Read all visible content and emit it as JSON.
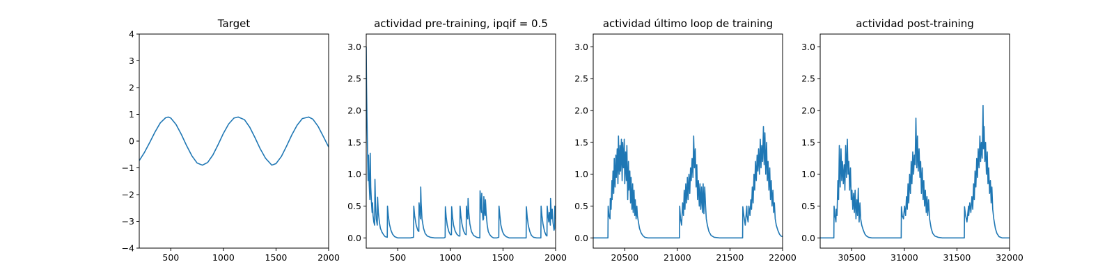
{
  "chart_data": [
    {
      "type": "line",
      "title": "Target",
      "xlim": [
        200,
        2000
      ],
      "ylim": [
        -4,
        4
      ],
      "xticks": [
        500,
        1000,
        1500,
        2000
      ],
      "yticks": [
        -4,
        -3,
        -2,
        -1,
        0,
        1,
        2,
        3,
        4
      ],
      "xtick_labels": [
        "500",
        "1000",
        "1500",
        "2000"
      ],
      "ytick_labels": [
        "−4",
        "−3",
        "−2",
        "−1",
        "0",
        "1",
        "2",
        "3",
        "4"
      ],
      "series_color": "#1f77b4",
      "series": [
        {
          "x": [
            200,
            250,
            300,
            350,
            400,
            450,
            475,
            500,
            550,
            600,
            650,
            700,
            750,
            800,
            850,
            900,
            950,
            1000,
            1050,
            1100,
            1140,
            1200,
            1250,
            1300,
            1350,
            1400,
            1460,
            1500,
            1550,
            1600,
            1650,
            1700,
            1750,
            1810,
            1850,
            1900,
            1950,
            2000
          ],
          "y": [
            -0.73,
            -0.42,
            -0.05,
            0.34,
            0.68,
            0.87,
            0.9,
            0.86,
            0.62,
            0.25,
            -0.17,
            -0.55,
            -0.82,
            -0.9,
            -0.8,
            -0.52,
            -0.13,
            0.29,
            0.64,
            0.86,
            0.9,
            0.8,
            0.52,
            0.13,
            -0.29,
            -0.64,
            -0.9,
            -0.84,
            -0.58,
            -0.19,
            0.23,
            0.59,
            0.84,
            0.9,
            0.82,
            0.55,
            0.17,
            -0.22
          ]
        }
      ]
    },
    {
      "type": "line",
      "title": "actividad pre-training, ipqif = 0.5",
      "xlim": [
        200,
        2000
      ],
      "ylim": [
        -0.16,
        3.2
      ],
      "xticks": [
        500,
        1000,
        1500,
        2000
      ],
      "yticks": [
        0.0,
        0.5,
        1.0,
        1.5,
        2.0,
        2.5,
        3.0
      ],
      "xtick_labels": [
        "500",
        "1000",
        "1500",
        "2000"
      ],
      "ytick_labels": [
        "0.0",
        "0.5",
        "1.0",
        "1.5",
        "2.0",
        "2.5",
        "3.0"
      ],
      "series_color": "#1f77b4",
      "series": [
        {
          "x": [
            200,
            203,
            207,
            212,
            218,
            222,
            228,
            235,
            238,
            243,
            250,
            256,
            260,
            265,
            272,
            280,
            283,
            288,
            295,
            305,
            308,
            315,
            325,
            335,
            350,
            365,
            380,
            400,
            402,
            410,
            420,
            435,
            450,
            470,
            500,
            540,
            580,
            620,
            650,
            652,
            660,
            675,
            690,
            700,
            702,
            710,
            715,
            718,
            722,
            730,
            745,
            760,
            780,
            810,
            850,
            900,
            940,
            950,
            952,
            960,
            970,
            985,
            1000,
            1010,
            1012,
            1020,
            1030,
            1045,
            1060,
            1080,
            1090,
            1092,
            1100,
            1110,
            1125,
            1140,
            1150,
            1152,
            1160,
            1165,
            1168,
            1175,
            1185,
            1200,
            1220,
            1250,
            1280,
            1282,
            1290,
            1295,
            1298,
            1302,
            1310,
            1315,
            1318,
            1325,
            1330,
            1333,
            1340,
            1350,
            1360,
            1375,
            1390,
            1410,
            1440,
            1460,
            1462,
            1470,
            1480,
            1495,
            1510,
            1530,
            1560,
            1600,
            1650,
            1700,
            1720,
            1722,
            1730,
            1740,
            1755,
            1770,
            1790,
            1820,
            1850,
            1860,
            1862,
            1870,
            1880,
            1895,
            1910,
            1918,
            1920,
            1928,
            1935,
            1940,
            1950,
            1952,
            1958,
            1962,
            1968,
            1975,
            1985,
            1990,
            1992,
            2000
          ],
          "y": [
            3.0,
            2.4,
            1.9,
            1.4,
            0.9,
            1.3,
            0.85,
            0.6,
            1.33,
            0.8,
            0.55,
            0.4,
            0.55,
            0.35,
            0.25,
            0.2,
            0.92,
            0.55,
            0.3,
            0.2,
            0.64,
            0.4,
            0.25,
            0.15,
            0.09,
            0.05,
            0.02,
            0.01,
            0.5,
            0.35,
            0.22,
            0.12,
            0.06,
            0.02,
            0.0,
            0.0,
            0.0,
            0.0,
            0.01,
            0.5,
            0.35,
            0.2,
            0.12,
            0.1,
            0.55,
            0.4,
            0.3,
            0.8,
            0.55,
            0.3,
            0.15,
            0.07,
            0.03,
            0.01,
            0.0,
            0.0,
            0.0,
            0.01,
            0.49,
            0.33,
            0.2,
            0.1,
            0.05,
            0.05,
            0.49,
            0.33,
            0.2,
            0.11,
            0.06,
            0.03,
            0.03,
            0.5,
            0.34,
            0.22,
            0.11,
            0.06,
            0.05,
            0.5,
            0.35,
            0.3,
            0.62,
            0.4,
            0.22,
            0.1,
            0.04,
            0.01,
            0.0,
            0.74,
            0.5,
            0.4,
            0.7,
            0.45,
            0.28,
            0.3,
            0.65,
            0.4,
            0.35,
            0.6,
            0.38,
            0.2,
            0.1,
            0.05,
            0.02,
            0.0,
            0.0,
            0.01,
            0.5,
            0.35,
            0.2,
            0.1,
            0.05,
            0.02,
            0.0,
            0.0,
            0.0,
            0.0,
            0.0,
            0.49,
            0.33,
            0.2,
            0.1,
            0.04,
            0.01,
            0.0,
            0.0,
            0.0,
            0.5,
            0.35,
            0.22,
            0.1,
            0.04,
            0.03,
            0.5,
            0.35,
            0.25,
            0.4,
            0.2,
            0.62,
            0.42,
            0.3,
            0.45,
            0.25,
            0.12,
            0.15,
            0.5,
            0.3
          ]
        }
      ]
    },
    {
      "type": "line",
      "title": "actividad último loop de training",
      "xlim": [
        20200,
        22000
      ],
      "ylim": [
        -0.16,
        3.2
      ],
      "xticks": [
        20500,
        21000,
        21500,
        22000
      ],
      "yticks": [
        0.0,
        0.5,
        1.0,
        1.5,
        2.0,
        2.5,
        3.0
      ],
      "xtick_labels": [
        "20500",
        "21000",
        "21500",
        "22000"
      ],
      "ytick_labels": [
        "0.0",
        "0.5",
        "1.0",
        "1.5",
        "2.0",
        "2.5",
        "3.0"
      ],
      "series_color": "#1f77b4",
      "series": [
        {
          "x": [
            20200,
            20340,
            20342,
            20350,
            20360,
            20362,
            20370,
            20378,
            20380,
            20388,
            20395,
            20400,
            20408,
            20415,
            20420,
            20428,
            20435,
            20440,
            20448,
            20455,
            20460,
            20468,
            20475,
            20480,
            20488,
            20495,
            20500,
            20508,
            20515,
            20520,
            20528,
            20535,
            20540,
            20548,
            20555,
            20560,
            20568,
            20575,
            20580,
            20588,
            20595,
            20600,
            20608,
            20615,
            20620,
            20630,
            20640,
            20655,
            20670,
            20690,
            20720,
            20760,
            20800,
            21020,
            21022,
            21030,
            21040,
            21050,
            21058,
            21065,
            21072,
            21080,
            21088,
            21095,
            21102,
            21110,
            21118,
            21125,
            21132,
            21140,
            21148,
            21155,
            21162,
            21170,
            21178,
            21185,
            21192,
            21200,
            21208,
            21215,
            21222,
            21230,
            21238,
            21245,
            21252,
            21260,
            21268,
            21275,
            21285,
            21300,
            21320,
            21350,
            21400,
            21620,
            21622,
            21632,
            21645,
            21660,
            21662,
            21672,
            21680,
            21690,
            21698,
            21705,
            21712,
            21720,
            21728,
            21735,
            21742,
            21750,
            21758,
            21765,
            21772,
            21780,
            21788,
            21795,
            21802,
            21810,
            21818,
            21825,
            21832,
            21840,
            21848,
            21855,
            21862,
            21870,
            21878,
            21885,
            21892,
            21900,
            21908,
            21915,
            21922,
            21930,
            21940,
            21955,
            21970,
            21985,
            22000
          ],
          "y": [
            0.0,
            0.0,
            0.5,
            0.35,
            0.3,
            0.62,
            0.45,
            0.9,
            0.6,
            1.05,
            0.7,
            1.25,
            0.8,
            1.3,
            0.95,
            1.4,
            0.85,
            1.6,
            1.0,
            1.45,
            1.05,
            1.55,
            0.9,
            1.5,
            1.1,
            1.55,
            0.85,
            1.35,
            0.9,
            1.45,
            0.6,
            1.2,
            0.75,
            1.05,
            0.55,
            0.95,
            0.45,
            0.85,
            0.4,
            0.75,
            0.35,
            0.6,
            0.3,
            0.5,
            0.35,
            0.25,
            0.15,
            0.08,
            0.04,
            0.01,
            0.0,
            0.0,
            0.0,
            0.0,
            0.5,
            0.3,
            0.2,
            0.55,
            0.35,
            0.75,
            0.45,
            0.85,
            0.55,
            0.95,
            0.6,
            1.0,
            0.7,
            1.1,
            0.9,
            1.25,
            0.95,
            1.6,
            1.1,
            1.4,
            0.8,
            1.15,
            0.6,
            0.9,
            0.5,
            0.85,
            0.45,
            0.8,
            0.4,
            0.85,
            0.38,
            0.8,
            0.5,
            0.3,
            0.2,
            0.1,
            0.04,
            0.01,
            0.0,
            0.0,
            0.49,
            0.35,
            0.2,
            0.5,
            0.35,
            0.25,
            0.5,
            0.35,
            0.6,
            0.45,
            0.8,
            0.55,
            1.0,
            0.75,
            1.2,
            0.9,
            1.3,
            1.05,
            1.4,
            1.0,
            1.55,
            1.1,
            1.45,
            1.2,
            1.75,
            1.15,
            1.65,
            1.0,
            1.5,
            0.9,
            1.2,
            0.75,
            1.1,
            0.6,
            0.9,
            0.5,
            0.75,
            0.4,
            0.55,
            0.3,
            0.2,
            0.12,
            0.06,
            0.03,
            0.02
          ]
        }
      ]
    },
    {
      "type": "line",
      "title": "actividad post-training",
      "xlim": [
        30200,
        32000
      ],
      "ylim": [
        -0.16,
        3.2
      ],
      "xticks": [
        30500,
        31000,
        31500,
        32000
      ],
      "yticks": [
        0.0,
        0.5,
        1.0,
        1.5,
        2.0,
        2.5,
        3.0
      ],
      "xtick_labels": [
        "30500",
        "31000",
        "31500",
        "32000"
      ],
      "ytick_labels": [
        "0.0",
        "0.5",
        "1.0",
        "1.5",
        "2.0",
        "2.5",
        "3.0"
      ],
      "series_color": "#1f77b4",
      "series": [
        {
          "x": [
            30200,
            30330,
            30332,
            30340,
            30350,
            30352,
            30360,
            30368,
            30375,
            30382,
            30390,
            30398,
            30405,
            30412,
            30420,
            30428,
            30435,
            30442,
            30450,
            30458,
            30465,
            30472,
            30480,
            30488,
            30495,
            30502,
            30510,
            30518,
            30525,
            30532,
            30540,
            30548,
            30555,
            30562,
            30570,
            30578,
            30585,
            30595,
            30610,
            30625,
            30640,
            30660,
            30690,
            30730,
            30770,
            30970,
            30972,
            30980,
            30992,
            31002,
            31012,
            31020,
            31028,
            31035,
            31042,
            31050,
            31058,
            31065,
            31072,
            31080,
            31088,
            31095,
            31102,
            31110,
            31118,
            31125,
            31132,
            31140,
            31148,
            31155,
            31162,
            31170,
            31178,
            31185,
            31192,
            31200,
            31208,
            31215,
            31222,
            31230,
            31240,
            31255,
            31270,
            31290,
            31320,
            31360,
            31400,
            31570,
            31572,
            31582,
            31595,
            31610,
            31612,
            31622,
            31632,
            31642,
            31650,
            31658,
            31665,
            31672,
            31680,
            31688,
            31695,
            31702,
            31710,
            31718,
            31725,
            31732,
            31740,
            31748,
            31752,
            31758,
            31765,
            31772,
            31780,
            31788,
            31795,
            31802,
            31810,
            31818,
            31825,
            31832,
            31840,
            31850,
            31865,
            31880,
            31900,
            31930,
            31960,
            32000
          ],
          "y": [
            0.0,
            0.0,
            0.5,
            0.35,
            0.25,
            0.45,
            0.35,
            0.9,
            0.6,
            1.45,
            0.8,
            1.4,
            0.9,
            1.2,
            0.85,
            1.15,
            0.75,
            1.45,
            0.95,
            1.55,
            1.0,
            1.2,
            0.75,
            1.1,
            0.6,
            0.75,
            0.45,
            0.7,
            0.4,
            0.75,
            0.3,
            0.6,
            0.35,
            0.78,
            0.25,
            0.55,
            0.3,
            0.2,
            0.12,
            0.06,
            0.03,
            0.01,
            0.0,
            0.0,
            0.0,
            0.0,
            0.49,
            0.35,
            0.3,
            0.5,
            0.35,
            0.65,
            0.45,
            0.85,
            0.55,
            1.0,
            0.7,
            1.2,
            0.85,
            1.35,
            1.0,
            1.3,
            1.15,
            1.88,
            1.1,
            1.6,
            1.05,
            1.4,
            0.95,
            1.2,
            0.7,
            1.1,
            0.6,
            0.9,
            0.5,
            0.75,
            0.4,
            0.65,
            0.35,
            0.6,
            0.3,
            0.15,
            0.07,
            0.03,
            0.01,
            0.0,
            0.0,
            0.0,
            0.49,
            0.35,
            0.25,
            0.5,
            0.35,
            0.55,
            0.4,
            0.65,
            0.45,
            0.85,
            0.6,
            1.05,
            0.8,
            1.25,
            0.95,
            1.4,
            1.1,
            1.6,
            1.2,
            1.5,
            1.25,
            2.08,
            1.4,
            1.75,
            1.2,
            1.5,
            1.0,
            1.35,
            0.85,
            1.1,
            0.7,
            0.9,
            0.55,
            0.8,
            0.45,
            0.3,
            0.15,
            0.07,
            0.02,
            0.0,
            0.0,
            0.0
          ]
        }
      ]
    }
  ]
}
